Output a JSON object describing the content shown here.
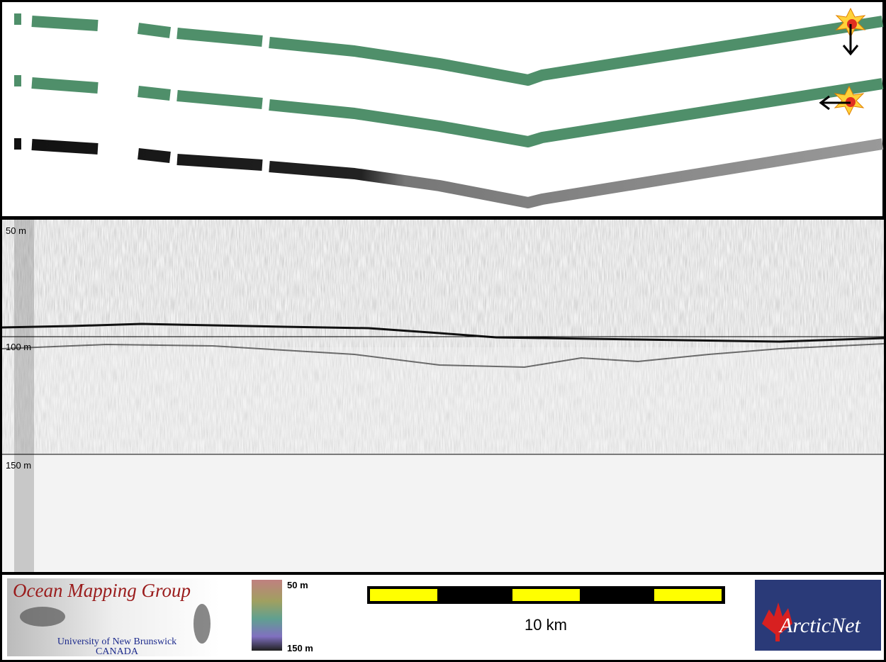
{
  "depth_labels": [
    "50 m",
    "100 m",
    "150 m"
  ],
  "footer": {
    "logo_title": "Ocean Mapping Group",
    "logo_university": "University of New Brunswick",
    "logo_country": "CANADA",
    "color_scale": {
      "top": "50 m",
      "bottom": "150 m"
    },
    "scale_bar": "10 km",
    "partner_logo": "ArcticNet"
  }
}
